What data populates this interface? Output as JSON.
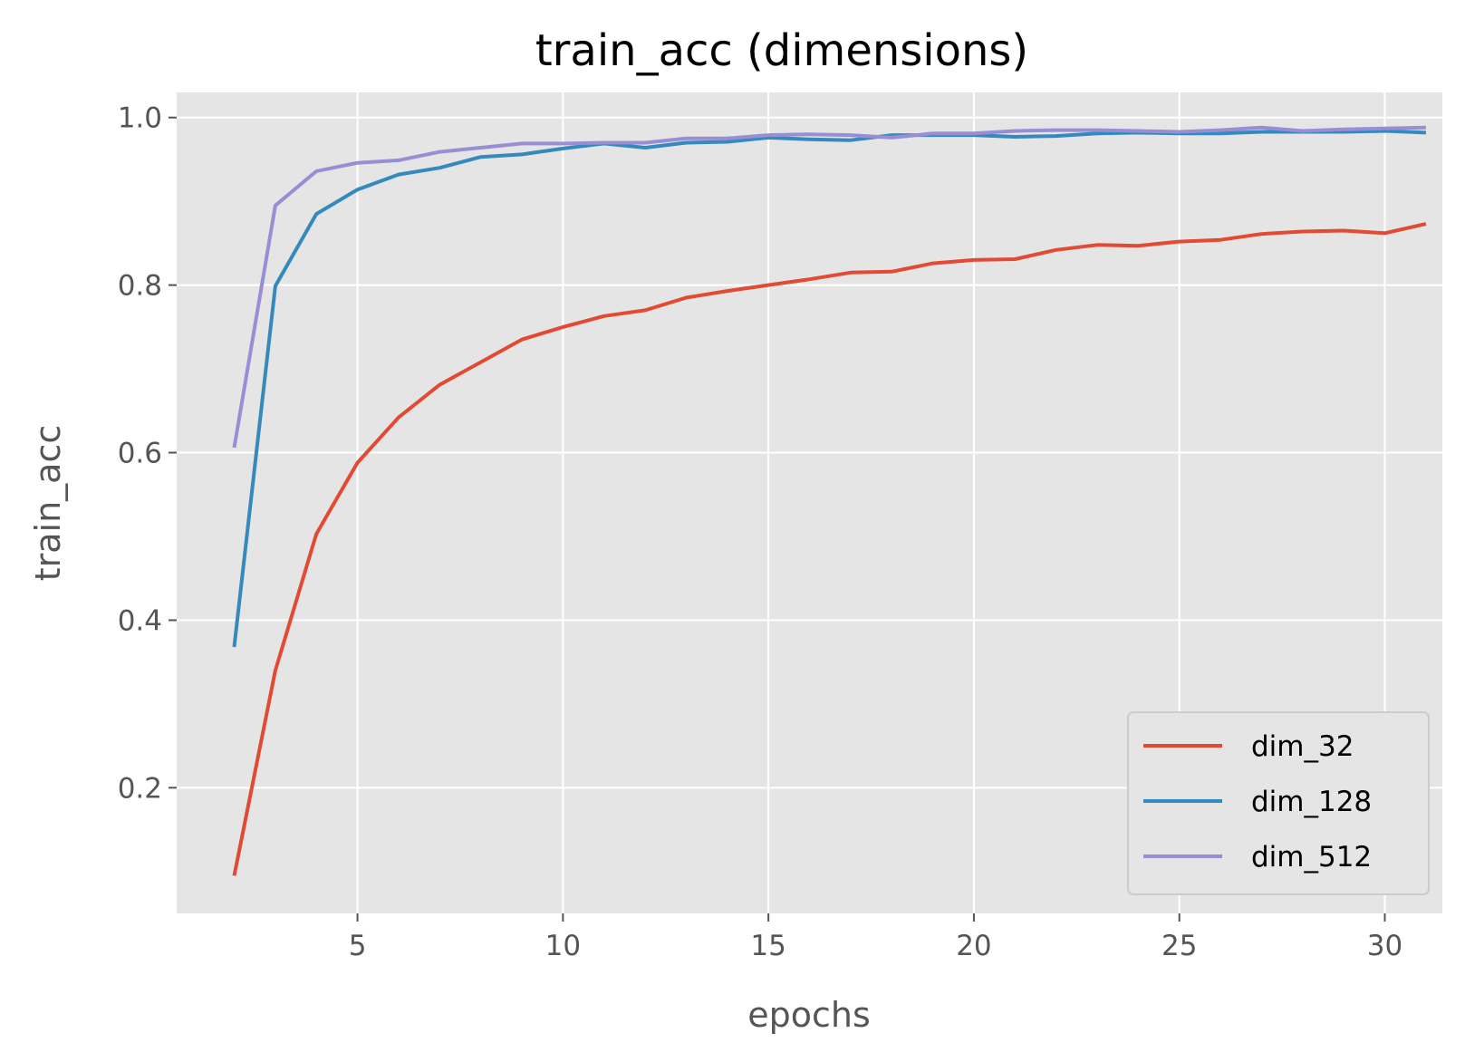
{
  "chart_data": {
    "type": "line",
    "title": "train_acc (dimensions)",
    "xlabel": "epochs",
    "ylabel": "train_acc",
    "xlim": [
      0.6,
      31.4
    ],
    "ylim": [
      0.05,
      1.03
    ],
    "x_ticks": [
      5,
      10,
      15,
      20,
      25,
      30
    ],
    "y_ticks": [
      0.2,
      0.4,
      0.6,
      0.8,
      1.0
    ],
    "x_tick_labels": [
      "5",
      "10",
      "15",
      "20",
      "25",
      "30"
    ],
    "y_tick_labels": [
      "0.2",
      "0.4",
      "0.6",
      "0.8",
      "1.0"
    ],
    "grid": true,
    "legend_position": "lower-right",
    "x": [
      2,
      3,
      4,
      5,
      6,
      7,
      8,
      9,
      10,
      11,
      12,
      13,
      14,
      15,
      16,
      17,
      18,
      19,
      20,
      21,
      22,
      23,
      24,
      25,
      26,
      27,
      28,
      29,
      30,
      31
    ],
    "series": [
      {
        "name": "dim_32",
        "color": "#e24a33",
        "values": [
          0.095,
          0.34,
          0.503,
          0.588,
          0.642,
          0.681,
          0.708,
          0.735,
          0.75,
          0.763,
          0.77,
          0.785,
          0.793,
          0.8,
          0.807,
          0.815,
          0.816,
          0.826,
          0.83,
          0.831,
          0.842,
          0.848,
          0.847,
          0.852,
          0.854,
          0.861,
          0.864,
          0.865,
          0.862,
          0.873
        ]
      },
      {
        "name": "dim_128",
        "color": "#348abd",
        "values": [
          0.368,
          0.799,
          0.885,
          0.914,
          0.932,
          0.94,
          0.953,
          0.956,
          0.963,
          0.969,
          0.964,
          0.97,
          0.971,
          0.976,
          0.974,
          0.973,
          0.979,
          0.979,
          0.979,
          0.977,
          0.978,
          0.981,
          0.982,
          0.981,
          0.981,
          0.983,
          0.983,
          0.983,
          0.984,
          0.982
        ]
      },
      {
        "name": "dim_512",
        "color": "#988ed5",
        "values": [
          0.606,
          0.895,
          0.936,
          0.946,
          0.949,
          0.959,
          0.964,
          0.969,
          0.969,
          0.97,
          0.97,
          0.975,
          0.975,
          0.979,
          0.98,
          0.979,
          0.976,
          0.981,
          0.981,
          0.984,
          0.985,
          0.985,
          0.984,
          0.983,
          0.985,
          0.988,
          0.984,
          0.986,
          0.987,
          0.988
        ]
      }
    ]
  }
}
